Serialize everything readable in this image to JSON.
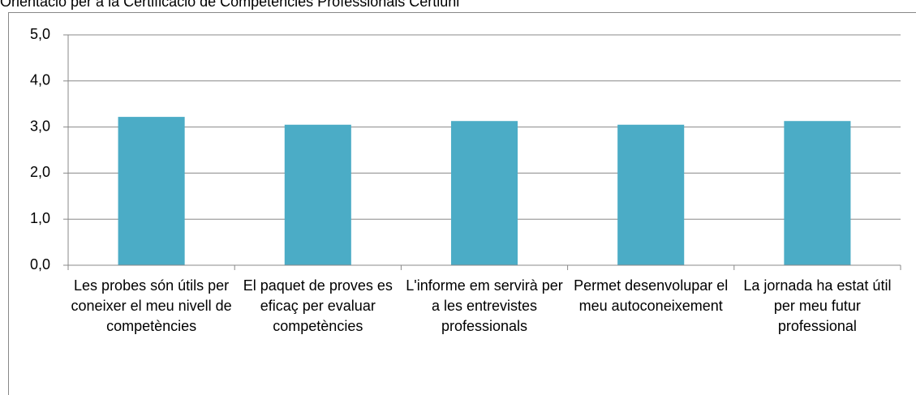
{
  "chart_data": {
    "type": "bar",
    "title": "Orientació per a la Certificació de Competències Professionals Certiuni",
    "categories": [
      "Les probes són útils per coneixer el meu nivell de competències",
      "El paquet de proves es eficaç per evaluar competències",
      "L'informe em servirà per a les entrevistes professionals",
      "Permet desenvolupar el meu autoconeixement",
      "La jornada ha estat útil per meu futur professional"
    ],
    "values": [
      3.22,
      3.05,
      3.13,
      3.05,
      3.13
    ],
    "color": "#4bacc6",
    "ylim": [
      0,
      5
    ],
    "yticks": [
      {
        "value": 0,
        "label": "0,0"
      },
      {
        "value": 1,
        "label": "1,0"
      },
      {
        "value": 2,
        "label": "2,0"
      },
      {
        "value": 3,
        "label": "3,0"
      },
      {
        "value": 4,
        "label": "4,0"
      },
      {
        "value": 5,
        "label": "5,0"
      }
    ],
    "grid": true
  }
}
